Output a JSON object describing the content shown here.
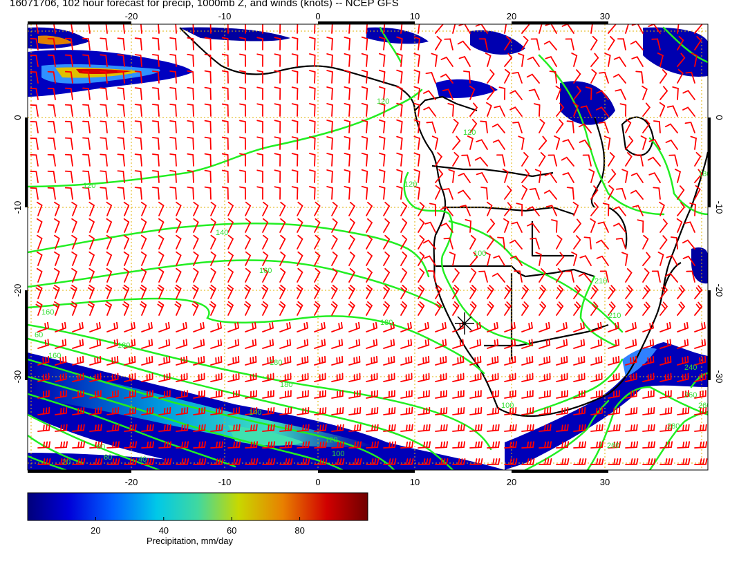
{
  "title": "16071706, 102 hour forecast for precip, 1000mb Z, and winds (knots) -- NCEP GFS",
  "map": {
    "lon_ticks": [
      "-20",
      "-10",
      "0",
      "10",
      "20",
      "30"
    ],
    "lat_ticks": [
      "0",
      "-10",
      "-20",
      "-30"
    ],
    "contour_labels": [
      "120",
      "120",
      "120",
      "120",
      "140",
      "160",
      "180",
      "180",
      "180",
      "180",
      "160",
      "160",
      "140",
      "120",
      "100",
      "80",
      "60",
      "40",
      "20",
      "60",
      "100",
      "210",
      "210",
      "240",
      "260",
      "260",
      "280",
      "260",
      "180",
      "100"
    ],
    "colors": {
      "precip_high": "#d40000",
      "precip_mid": "#e0d000",
      "precip_low": "#0000a0",
      "contour": "#22ee22",
      "barb": "#ff0000",
      "grid": "#e0b000",
      "coast": "#000000"
    },
    "marker": "asterisk"
  },
  "colorbar": {
    "ticks": [
      "20",
      "40",
      "60",
      "80"
    ],
    "label": "Precipitation, mm/day",
    "range": [
      0,
      100
    ]
  }
}
